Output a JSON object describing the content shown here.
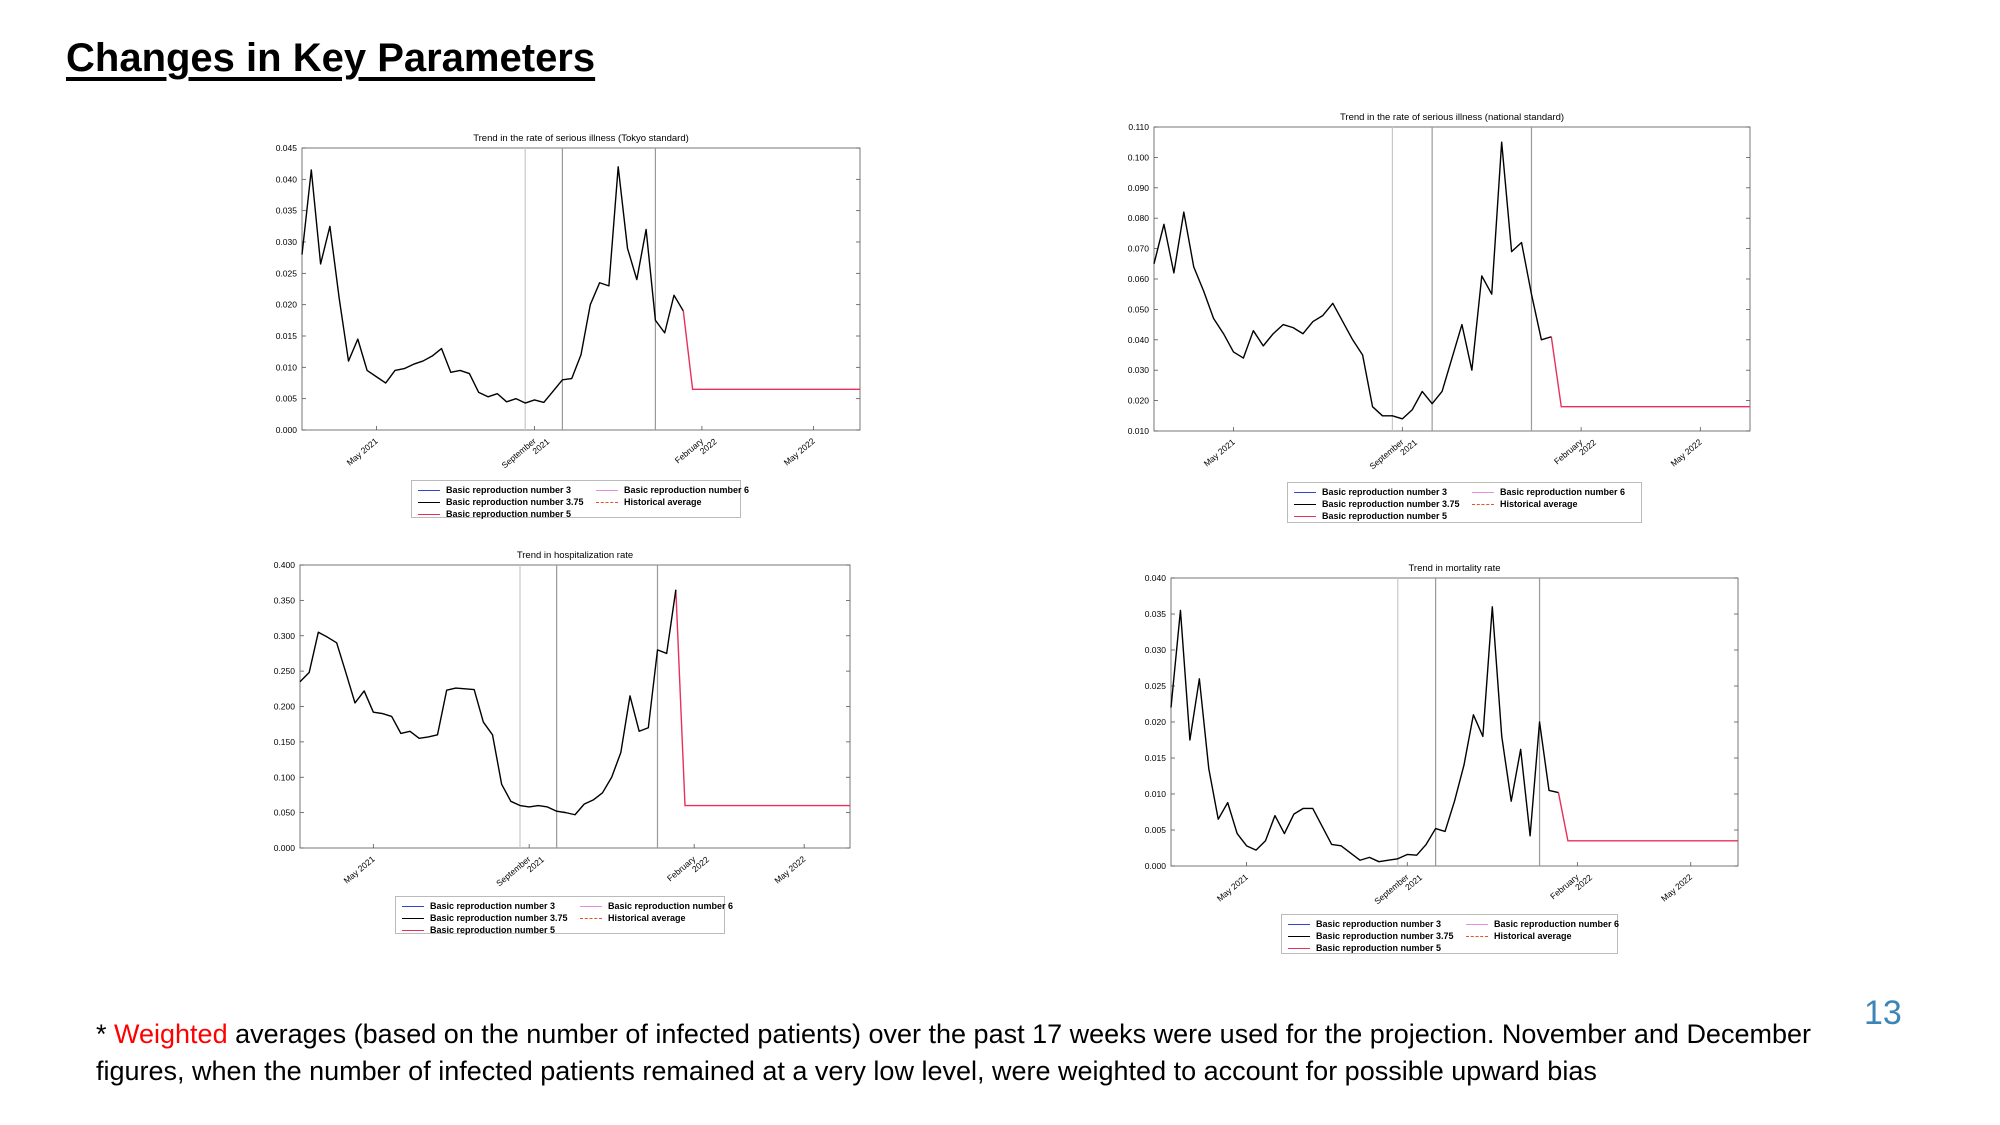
{
  "slide": {
    "title": "Changes in Key Parameters",
    "page_number": "13",
    "footnote": {
      "prefix": "* ",
      "highlight": "Weighted",
      "rest": " averages (based on the number of infected patients) over the past 17 weeks were used for the projection. November and December figures, when the number of infected patients remained at a very low level, were weighted to account for possible upward bias"
    }
  },
  "colors": {
    "actual": "#000000",
    "projection": "#e8305a",
    "vline": "#9a9a9a",
    "vline_light": "#c8c8c8",
    "axis": "#333333",
    "highlight": "#ff0000",
    "page_number": "#3d85b8"
  },
  "legend": [
    {
      "label": "Basic reproduction number 3",
      "color": "#3344cc",
      "style": "solid"
    },
    {
      "label": "Basic reproduction number 6",
      "color": "#e58ce0",
      "style": "solid"
    },
    {
      "label": "Basic reproduction number 3.75",
      "color": "#000000",
      "style": "solid"
    },
    {
      "label": "Historical average",
      "color": "#e8502a",
      "style": "dashed"
    },
    {
      "label": "Basic reproduction number 5",
      "color": "#e8305a",
      "style": "solid"
    }
  ],
  "chart_data": [
    {
      "type": "line",
      "title": "Trend in the rate of serious illness (Tokyo standard)",
      "xlabel": "",
      "ylabel": "",
      "x_ticks": [
        "May 2021",
        "September 2021",
        "February 2022",
        "May 2022"
      ],
      "x_tick_positions": [
        8,
        25,
        43,
        55
      ],
      "x_range": [
        0,
        60
      ],
      "ylim": [
        0,
        0.045
      ],
      "y_ticks": [
        "0.000",
        "0.005",
        "0.010",
        "0.015",
        "0.020",
        "0.025",
        "0.030",
        "0.035",
        "0.040",
        "0.045"
      ],
      "vlines": [
        24,
        28,
        38
      ],
      "grid": false,
      "actual": [
        0.028,
        0.0415,
        0.0265,
        0.0325,
        0.021,
        0.011,
        0.0145,
        0.0095,
        0.0085,
        0.0075,
        0.0095,
        0.0098,
        0.0105,
        0.011,
        0.0118,
        0.013,
        0.0092,
        0.0095,
        0.009,
        0.006,
        0.0053,
        0.0058,
        0.0045,
        0.005,
        0.0043,
        0.0048,
        0.0044,
        0.0062,
        0.008,
        0.0082,
        0.012,
        0.02,
        0.0235,
        0.023,
        0.042,
        0.029,
        0.024,
        0.032,
        0.0175,
        0.0155,
        0.0215,
        0.019
      ],
      "projection": [
        [
          41,
          0.019
        ],
        [
          42,
          0.0065
        ],
        [
          60,
          0.0065
        ]
      ]
    },
    {
      "type": "line",
      "title": "Trend in the rate of serious illness (national standard)",
      "xlabel": "",
      "ylabel": "",
      "x_ticks": [
        "May 2021",
        "September 2021",
        "February 2022",
        "May 2022"
      ],
      "x_tick_positions": [
        8,
        25,
        43,
        55
      ],
      "x_range": [
        0,
        60
      ],
      "ylim": [
        0.01,
        0.11
      ],
      "y_ticks": [
        "0.010",
        "0.020",
        "0.030",
        "0.040",
        "0.050",
        "0.060",
        "0.070",
        "0.080",
        "0.090",
        "0.100",
        "0.110"
      ],
      "vlines": [
        24,
        28,
        38
      ],
      "grid": false,
      "actual": [
        0.065,
        0.078,
        0.062,
        0.082,
        0.064,
        0.056,
        0.047,
        0.042,
        0.036,
        0.034,
        0.043,
        0.038,
        0.042,
        0.045,
        0.044,
        0.042,
        0.046,
        0.048,
        0.052,
        0.046,
        0.04,
        0.035,
        0.018,
        0.015,
        0.015,
        0.014,
        0.017,
        0.023,
        0.019,
        0.023,
        0.034,
        0.045,
        0.03,
        0.061,
        0.055,
        0.105,
        0.069,
        0.072,
        0.055,
        0.04,
        0.041
      ],
      "projection": [
        [
          40,
          0.041
        ],
        [
          41,
          0.018
        ],
        [
          60,
          0.018
        ]
      ]
    },
    {
      "type": "line",
      "title": "Trend in hospitalization rate",
      "xlabel": "",
      "ylabel": "",
      "x_ticks": [
        "May 2021",
        "September 2021",
        "February 2022",
        "May 2022"
      ],
      "x_tick_positions": [
        8,
        25,
        43,
        55
      ],
      "x_range": [
        0,
        60
      ],
      "ylim": [
        0,
        0.4
      ],
      "y_ticks": [
        "0.000",
        "0.050",
        "0.100",
        "0.150",
        "0.200",
        "0.250",
        "0.300",
        "0.350",
        "0.400"
      ],
      "vlines": [
        24,
        28,
        39
      ],
      "grid": false,
      "actual": [
        0.235,
        0.248,
        0.305,
        0.298,
        0.29,
        0.248,
        0.205,
        0.222,
        0.192,
        0.19,
        0.186,
        0.162,
        0.165,
        0.155,
        0.157,
        0.16,
        0.223,
        0.226,
        0.225,
        0.224,
        0.178,
        0.16,
        0.09,
        0.066,
        0.06,
        0.058,
        0.06,
        0.058,
        0.052,
        0.05,
        0.047,
        0.062,
        0.068,
        0.078,
        0.1,
        0.135,
        0.215,
        0.165,
        0.17,
        0.28,
        0.275,
        0.365
      ],
      "projection": [
        [
          41,
          0.365
        ],
        [
          42,
          0.06
        ],
        [
          60,
          0.06
        ]
      ]
    },
    {
      "type": "line",
      "title": "Trend in mortality rate",
      "xlabel": "",
      "ylabel": "",
      "x_ticks": [
        "May 2021",
        "September 2021",
        "February 2022",
        "May 2022"
      ],
      "x_tick_positions": [
        8,
        25,
        43,
        55
      ],
      "x_range": [
        0,
        60
      ],
      "ylim": [
        0,
        0.04
      ],
      "y_ticks": [
        "0.000",
        "0.005",
        "0.010",
        "0.015",
        "0.020",
        "0.025",
        "0.030",
        "0.035",
        "0.040"
      ],
      "vlines": [
        24,
        28,
        39
      ],
      "grid": false,
      "actual": [
        0.022,
        0.0355,
        0.0175,
        0.026,
        0.0135,
        0.0065,
        0.0088,
        0.0045,
        0.0028,
        0.0022,
        0.0035,
        0.007,
        0.0045,
        0.0072,
        0.008,
        0.008,
        0.0055,
        0.003,
        0.0028,
        0.0018,
        0.0008,
        0.0012,
        0.0006,
        0.0008,
        0.001,
        0.0016,
        0.0015,
        0.003,
        0.0052,
        0.0048,
        0.009,
        0.014,
        0.021,
        0.018,
        0.036,
        0.018,
        0.009,
        0.0162,
        0.0042,
        0.02,
        0.0105,
        0.0102
      ],
      "projection": [
        [
          41,
          0.0102
        ],
        [
          42,
          0.0035
        ],
        [
          60,
          0.0035
        ]
      ]
    }
  ]
}
